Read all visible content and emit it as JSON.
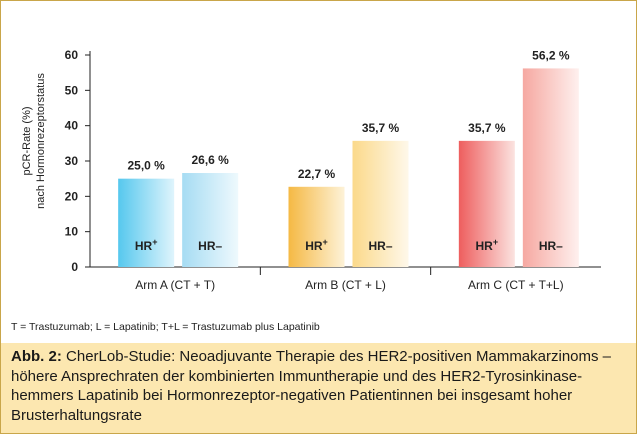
{
  "chart_data": {
    "type": "bar",
    "ylabel_line1": "pCR-Rate (%)",
    "ylabel_line2": "nach Hormonrezeptorstatus",
    "ylim": [
      0,
      60
    ],
    "yticks": [
      "0",
      "10",
      "20",
      "30",
      "40",
      "50",
      "60"
    ],
    "groups": [
      {
        "label": "Arm A (CT + T)",
        "bars": [
          {
            "series": "HR+",
            "value": 25.0,
            "value_label": "25,0 %",
            "color_top": "#56c8ee",
            "color_bottom": "#dff4fc"
          },
          {
            "series": "HR–",
            "value": 26.6,
            "value_label": "26,6 %",
            "color_top": "#a6dcf3",
            "color_bottom": "#eef9fd"
          }
        ]
      },
      {
        "label": "Arm B (CT + L)",
        "bars": [
          {
            "series": "HR+",
            "value": 22.7,
            "value_label": "22,7 %",
            "color_top": "#f5b944",
            "color_bottom": "#fdf2d8"
          },
          {
            "series": "HR–",
            "value": 35.7,
            "value_label": "35,7 %",
            "color_top": "#fbd98a",
            "color_bottom": "#fef8ea"
          }
        ]
      },
      {
        "label": "Arm C (CT + T+L)",
        "bars": [
          {
            "series": "HR+",
            "value": 35.7,
            "value_label": "35,7 %",
            "color_top": "#ee5e5e",
            "color_bottom": "#fbe3e0"
          },
          {
            "series": "HR–",
            "value": 56.2,
            "value_label": "56,2 %",
            "color_top": "#f6a8a1",
            "color_bottom": "#fef0ee"
          }
        ]
      }
    ],
    "bar_inner_labels": {
      "hr_pos": "HR",
      "hr_pos_sup": "+",
      "hr_neg": "HR–"
    }
  },
  "abbreviations": "T = Trastuzumab; L = Lapatinib; T+L = Trastuzumab plus Lapatinib",
  "caption": {
    "label": "Abb. 2:",
    "text": "CherLob-Studie: Neoadjuvante Therapie des HER2-positiven Mammakarzinoms – höhere Ansprechraten der kombinierten Immuntherapie und des HER2-Tyrosinkinase-hemmers Lapatinib bei Hormonrezeptor-negativen Patientinnen bei insgesamt hoher Brusterhaltungsrate"
  }
}
